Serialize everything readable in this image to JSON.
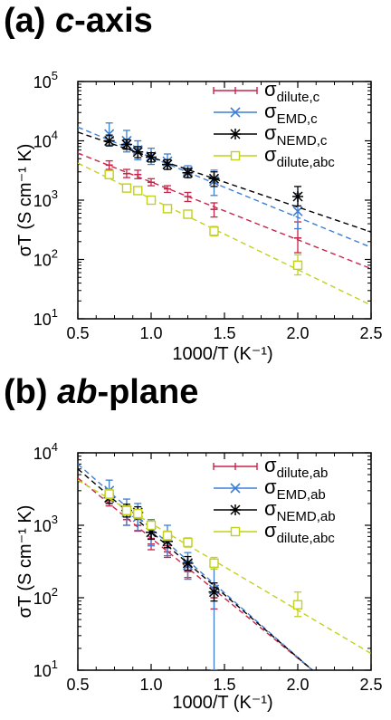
{
  "titles": [
    {
      "letter": "(a) ",
      "italic": "c",
      "rest": "-axis"
    },
    {
      "letter": "(b) ",
      "italic": "ab",
      "rest": "-plane"
    }
  ],
  "colors": {
    "red": "#c8244a",
    "blue": "#3d7fd6",
    "black": "#000000",
    "yellow": "#c2d11c"
  },
  "chart_data": [
    {
      "type": "scatter",
      "panel": "(a) c-axis",
      "xlabel": "1000/T (K⁻¹)",
      "ylabel": "σT (S cm⁻¹ K)",
      "xlim": [
        0.5,
        2.5
      ],
      "ylim": [
        10,
        100000
      ],
      "yscale": "log",
      "xticks": [
        "0.5",
        "1.0",
        "1.5",
        "2.0",
        "2.5"
      ],
      "yticks": [
        {
          "base": "10",
          "exp": "1"
        },
        {
          "base": "10",
          "exp": "2"
        },
        {
          "base": "10",
          "exp": "3"
        },
        {
          "base": "10",
          "exp": "4"
        },
        {
          "base": "10",
          "exp": "5"
        }
      ],
      "legend_position": "top-right",
      "series": [
        {
          "name": "σ",
          "sub": "dilute,c",
          "color": "red",
          "marker": "bar",
          "x": [
            0.714,
            0.833,
            0.909,
            1.0,
            1.111,
            1.25,
            1.429,
            2.0
          ],
          "y": [
            3900,
            2800,
            2700,
            2000,
            1550,
            1150,
            700,
            230
          ],
          "err_hi": [
            4600,
            3300,
            3200,
            2300,
            1750,
            1350,
            900,
            430
          ],
          "err_lo": [
            3300,
            2400,
            2300,
            1750,
            1350,
            950,
            520,
            130
          ],
          "fit": [
            [
              0.5,
              6200
            ],
            [
              2.5,
              70
            ]
          ]
        },
        {
          "name": "σ",
          "sub": "EMD,c",
          "color": "blue",
          "marker": "x",
          "x": [
            0.714,
            0.833,
            0.909,
            1.0,
            1.111,
            1.25,
            1.429,
            2.0
          ],
          "y": [
            13000,
            10000,
            7000,
            5500,
            4500,
            3100,
            2100,
            650
          ],
          "err_hi": [
            20000,
            15000,
            10000,
            7500,
            6000,
            3800,
            3200,
            1300
          ],
          "err_lo": [
            8500,
            6500,
            4800,
            4000,
            3300,
            2400,
            1200,
            330
          ],
          "fit": [
            [
              0.5,
              17000
            ],
            [
              2.5,
              160
            ]
          ]
        },
        {
          "name": "σ",
          "sub": "NEMD,c",
          "color": "black",
          "marker": "star",
          "x": [
            0.714,
            0.833,
            0.909,
            1.0,
            1.111,
            1.25,
            1.429,
            2.0
          ],
          "y": [
            10000,
            8700,
            6500,
            5300,
            4000,
            2900,
            2300,
            1150
          ],
          "err_hi": [
            12500,
            10500,
            8000,
            6300,
            4800,
            3400,
            3000,
            1700
          ],
          "err_lo": [
            8200,
            7200,
            5200,
            4400,
            3300,
            2400,
            1700,
            800
          ],
          "fit": [
            [
              0.5,
              14000
            ],
            [
              2.5,
              290
            ]
          ]
        },
        {
          "name": "σ",
          "sub": "dilute,abc",
          "color": "yellow",
          "marker": "square",
          "x": [
            0.714,
            0.833,
            0.909,
            1.0,
            1.111,
            1.25,
            1.429,
            2.0
          ],
          "y": [
            2700,
            1600,
            1450,
            1000,
            720,
            580,
            300,
            80
          ],
          "err_hi": [
            3100,
            1850,
            1650,
            1150,
            830,
            670,
            360,
            120
          ],
          "err_lo": [
            2350,
            1380,
            1250,
            870,
            620,
            500,
            250,
            55
          ],
          "fit": [
            [
              0.5,
              4200
            ],
            [
              2.5,
              17
            ]
          ]
        }
      ]
    },
    {
      "type": "scatter",
      "panel": "(b) ab-plane",
      "xlabel": "1000/T (K⁻¹)",
      "ylabel": "σT (S cm⁻¹ K)",
      "xlim": [
        0.5,
        2.5
      ],
      "ylim": [
        10,
        10000
      ],
      "yscale": "log",
      "xticks": [
        "0.5",
        "1.0",
        "1.5",
        "2.0",
        "2.5"
      ],
      "yticks": [
        {
          "base": "10",
          "exp": "1"
        },
        {
          "base": "10",
          "exp": "2"
        },
        {
          "base": "10",
          "exp": "3"
        },
        {
          "base": "10",
          "exp": "4"
        }
      ],
      "legend_position": "top-right",
      "series": [
        {
          "name": "σ",
          "sub": "dilute,ab",
          "color": "red",
          "marker": "bar",
          "x": [
            0.714,
            0.833,
            0.909,
            1.0,
            1.111,
            1.25,
            1.429
          ],
          "y": [
            2200,
            1200,
            1000,
            550,
            430,
            230,
            100
          ],
          "err_hi": [
            2600,
            1450,
            1200,
            660,
            520,
            280,
            140
          ],
          "err_lo": [
            1850,
            1000,
            830,
            460,
            360,
            190,
            70
          ],
          "fit": [
            [
              0.5,
              4500
            ],
            [
              2.1,
              10
            ]
          ]
        },
        {
          "name": "σ",
          "sub": "EMD,ab",
          "color": "blue",
          "marker": "x",
          "x": [
            0.714,
            0.833,
            0.909,
            1.0,
            1.111,
            1.25,
            1.429
          ],
          "y": [
            3000,
            1500,
            1300,
            800,
            600,
            280,
            130
          ],
          "err_hi": [
            4200,
            2300,
            2000,
            1200,
            1000,
            420,
            250
          ],
          "err_lo": [
            2000,
            1000,
            850,
            520,
            380,
            180,
            10
          ],
          "fit": [
            [
              0.5,
              7000
            ],
            [
              2.1,
              10
            ]
          ]
        },
        {
          "name": "σ",
          "sub": "NEMD,ab",
          "color": "black",
          "marker": "star",
          "x": [
            0.714,
            0.833,
            0.909,
            1.0,
            1.111,
            1.25,
            1.429
          ],
          "y": [
            2400,
            1600,
            1500,
            800,
            600,
            300,
            120
          ],
          "err_hi": [
            2900,
            1950,
            1800,
            1000,
            740,
            370,
            160
          ],
          "err_lo": [
            2000,
            1300,
            1250,
            640,
            490,
            240,
            90
          ],
          "fit": [
            [
              0.5,
              6000
            ],
            [
              2.1,
              10
            ]
          ]
        },
        {
          "name": "σ",
          "sub": "dilute,abc",
          "color": "yellow",
          "marker": "square",
          "x": [
            0.714,
            0.833,
            0.909,
            1.0,
            1.111,
            1.25,
            1.429,
            2.0
          ],
          "y": [
            2700,
            1600,
            1450,
            1000,
            720,
            580,
            300,
            80
          ],
          "err_hi": [
            3100,
            1850,
            1650,
            1150,
            830,
            670,
            360,
            120
          ],
          "err_lo": [
            2350,
            1380,
            1250,
            870,
            620,
            500,
            250,
            55
          ],
          "fit": [
            [
              0.5,
              4200
            ],
            [
              2.5,
              17
            ]
          ]
        }
      ]
    }
  ]
}
